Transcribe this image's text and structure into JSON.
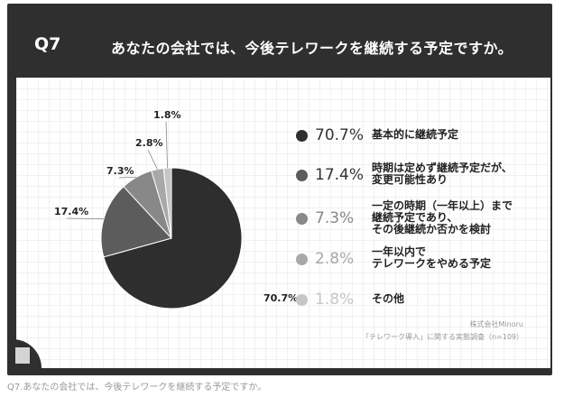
{
  "header": {
    "qnum": "Q7",
    "title": "あなたの会社では、今後テレワークを継続する予定ですか。"
  },
  "chart_data": {
    "type": "pie",
    "title": "あなたの会社では、今後テレワークを継続する予定ですか。",
    "slices": [
      {
        "label": "基本的に継続予定",
        "value": 70.7,
        "pct": "70.7%",
        "color": "#2e2e2e"
      },
      {
        "label": "時期は定めず継続予定だが、\n変更可能性あり",
        "value": 17.4,
        "pct": "17.4%",
        "color": "#5c5c5c"
      },
      {
        "label": "一定の時期（一年以上）まで\n継続予定であり、\nその後継続か否かを検討",
        "value": 7.3,
        "pct": "7.3%",
        "color": "#888888"
      },
      {
        "label": "一年以内で\nテレワークをやめる予定",
        "value": 2.8,
        "pct": "2.8%",
        "color": "#a8a8a8"
      },
      {
        "label": "その他",
        "value": 1.8,
        "pct": "1.8%",
        "color": "#c6c6c6"
      }
    ],
    "start": "12 o'clock, clockwise",
    "legend": "right"
  },
  "source": {
    "company": "株式会社Minoru",
    "survey": "「テレワーク導入」に関する実態調査（n=109）"
  },
  "caption": "Q7.あなたの会社では、今後テレワークを継続する予定ですか。"
}
